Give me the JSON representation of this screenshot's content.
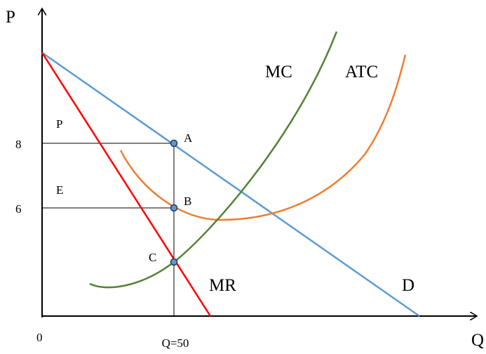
{
  "axes": {
    "y_label": "P",
    "x_label": "Q",
    "origin": "0",
    "price_high": "8",
    "price_low": "6",
    "quantity": "Q=50"
  },
  "regions": {
    "upper": "P",
    "lower": "E"
  },
  "points": {
    "a": "A",
    "b": "B",
    "c": "C"
  },
  "curves": {
    "mc": "MC",
    "atc": "ATC",
    "mr": "MR",
    "demand": "D"
  }
}
